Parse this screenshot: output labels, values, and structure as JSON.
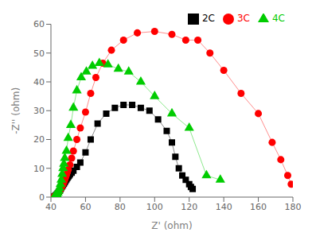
{
  "chart_data": {
    "type": "line",
    "xlabel": "Z' (ohm)",
    "ylabel": "-Z'' (ohm)",
    "xlim": [
      40,
      180
    ],
    "ylim": [
      0,
      60
    ],
    "xticks": [
      40,
      60,
      80,
      100,
      120,
      140,
      160,
      180
    ],
    "yticks": [
      0,
      10,
      20,
      30,
      40,
      50,
      60
    ],
    "grid": false,
    "legend": "upper right",
    "series": [
      {
        "name": "2C",
        "color": "#000000",
        "marker": "square",
        "x": [
          42.0,
          42.5,
          43.0,
          43.5,
          44.0,
          44.5,
          45.0,
          45.5,
          46.0,
          46.5,
          47.0,
          47.5,
          48.0,
          48.5,
          49.0,
          49.5,
          50.0,
          50.5,
          51.0,
          52.0,
          53.0,
          55.0,
          57.0,
          60.0,
          63.0,
          67.0,
          72.0,
          77.0,
          82.0,
          87.0,
          92.0,
          97.0,
          102.0,
          107.0,
          110.0,
          112.0,
          114.0,
          116.0,
          118.0,
          120.0,
          121.0,
          122.0
        ],
        "values": [
          0.2,
          0.4,
          0.7,
          1.0,
          1.4,
          1.8,
          2.2,
          2.7,
          3.2,
          3.7,
          4.2,
          4.7,
          5.2,
          5.7,
          6.2,
          6.7,
          7.1,
          7.5,
          7.9,
          8.5,
          9.2,
          10.5,
          12.0,
          15.5,
          20.0,
          25.5,
          29.0,
          31.0,
          32.0,
          32.0,
          31.0,
          30.0,
          27.0,
          23.0,
          19.0,
          14.0,
          10.0,
          7.5,
          6.0,
          4.5,
          3.5,
          2.8
        ]
      },
      {
        "name": "3C",
        "color": "#ff0000",
        "marker": "circle",
        "x": [
          42.0,
          42.5,
          43.0,
          43.5,
          44.0,
          44.5,
          45.0,
          45.5,
          46.0,
          46.5,
          47.0,
          47.5,
          48.0,
          48.5,
          49.0,
          49.5,
          50.0,
          51.0,
          52.0,
          53.0,
          55.0,
          57.0,
          60.0,
          63.0,
          66.0,
          70.0,
          75.0,
          82.0,
          90.0,
          100.0,
          110.0,
          118.0,
          125.0,
          132.0,
          140.0,
          150.0,
          160.0,
          168.0,
          173.0,
          177.0,
          179.0
        ],
        "values": [
          0.2,
          0.4,
          0.6,
          0.9,
          1.2,
          1.6,
          2.1,
          2.6,
          3.2,
          3.8,
          4.5,
          5.2,
          6.0,
          6.8,
          7.7,
          8.6,
          9.5,
          11.2,
          13.5,
          16.0,
          20.0,
          24.0,
          29.5,
          36.0,
          41.5,
          46.5,
          51.0,
          54.5,
          57.0,
          57.5,
          56.5,
          54.5,
          54.5,
          50.0,
          44.0,
          36.0,
          29.0,
          19.0,
          13.0,
          7.5,
          4.5
        ]
      },
      {
        "name": "4C",
        "color": "#00cc00",
        "marker": "triangle",
        "x": [
          42.0,
          42.5,
          43.0,
          43.5,
          44.0,
          44.5,
          45.0,
          45.5,
          46.0,
          46.5,
          47.0,
          47.5,
          48.0,
          49.0,
          50.0,
          51.5,
          53.0,
          55.0,
          57.5,
          60.5,
          64.0,
          68.0,
          73.0,
          79.0,
          85.0,
          92.0,
          100.0,
          110.0,
          120.0,
          130.0,
          138.0
        ],
        "values": [
          0.2,
          0.4,
          0.7,
          1.0,
          1.5,
          2.2,
          3.2,
          4.5,
          6.0,
          8.0,
          10.0,
          11.5,
          13.5,
          16.0,
          20.5,
          25.0,
          31.0,
          37.0,
          41.5,
          43.5,
          45.5,
          46.5,
          46.0,
          44.5,
          43.5,
          40.0,
          35.0,
          29.0,
          24.0,
          7.5,
          6.0
        ]
      }
    ]
  }
}
